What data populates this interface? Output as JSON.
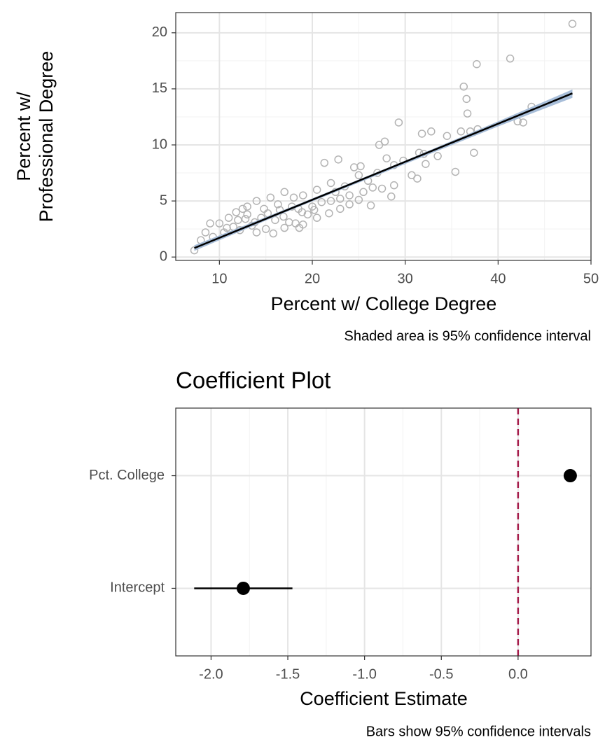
{
  "chart_data": [
    {
      "type": "scatter",
      "xlabel": "Percent w/ College Degree",
      "ylabel": [
        "Percent w/",
        "Professional Degree"
      ],
      "caption": "Shaded area is 95% confidence interval",
      "x": [
        48,
        41.3,
        37.7,
        36.3,
        36.6,
        36.7,
        43.6,
        42.1,
        42.7,
        37.8,
        37.0,
        36,
        32.8,
        31.8,
        34.5,
        29.3,
        27.8,
        27.2,
        37.4,
        33.5,
        31.5,
        32,
        35.4,
        32.2,
        29.8,
        28.8,
        28,
        27,
        30.7,
        31.3,
        28.8,
        28.5,
        26.3,
        24.5,
        25.2,
        22.8,
        21.3,
        25,
        26,
        27.5,
        23.5,
        22,
        20.5,
        24,
        25.5,
        19,
        18,
        17,
        15.5,
        14,
        13,
        12.5,
        11,
        10,
        9,
        8.5,
        8,
        7.3,
        9.3,
        10.5,
        11.5,
        12,
        13.5,
        14.5,
        15,
        16,
        16.5,
        17.5,
        18.5,
        19.5,
        20,
        21,
        22,
        23,
        19,
        17,
        14,
        12.2,
        15.8,
        18.2,
        20.5,
        21.8,
        23,
        24,
        13,
        14.8,
        16.3,
        17.8,
        18.9,
        20.2,
        11.8,
        10.8,
        25,
        26.5,
        22.5,
        18.6,
        16.9,
        15.2,
        13.8,
        12.8
      ],
      "y": [
        20.8,
        17.7,
        17.2,
        15.2,
        14.1,
        12.8,
        13.4,
        12.1,
        12.0,
        11.4,
        11.2,
        11.2,
        11.2,
        11,
        10.8,
        12,
        10.3,
        10,
        9.3,
        9,
        9.3,
        9.2,
        7.6,
        8.3,
        8.6,
        8.2,
        8.8,
        7.5,
        7.3,
        7.0,
        6.4,
        5.4,
        4.6,
        8.0,
        8.1,
        8.7,
        8.4,
        7.3,
        6.8,
        6.1,
        6.3,
        6.6,
        6.0,
        5.5,
        5.8,
        5.5,
        5.3,
        5.8,
        5.3,
        5,
        4.5,
        4.3,
        3.5,
        3,
        3,
        2.2,
        1.5,
        0.6,
        1.8,
        2.2,
        2.7,
        3.3,
        2.8,
        3.5,
        2.5,
        3.3,
        4.2,
        3.1,
        4.3,
        3.8,
        4.5,
        4.9,
        5,
        5.2,
        2.9,
        2.6,
        2.2,
        2.4,
        2.1,
        3.0,
        3.5,
        3.9,
        4.3,
        4.7,
        3.8,
        4.3,
        4.7,
        4.5,
        4.0,
        4.2,
        4.0,
        2.6,
        5.1,
        6.2,
        5.8,
        2.6,
        3.6,
        3.9,
        3.1,
        3.4
      ],
      "point_color": "#b3b3b3",
      "fit": {
        "x": [
          7.3,
          48
        ],
        "y": [
          0.8,
          14.6
        ],
        "color": "#000000"
      },
      "ci": {
        "x": [
          7.3,
          18,
          30,
          40,
          48
        ],
        "lower": [
          0.55,
          4.3,
          8.3,
          11.65,
          14.2
        ],
        "upper": [
          1.05,
          4.55,
          8.6,
          12.1,
          14.95
        ],
        "color": "#a8bed9"
      },
      "xlim": [
        5.3,
        50
      ],
      "ylim": [
        -0.3,
        21.8
      ],
      "xticks": [
        10,
        20,
        30,
        40,
        50
      ],
      "yticks": [
        0,
        5,
        10,
        15,
        20
      ],
      "grid": true
    },
    {
      "type": "coefficient",
      "title": "Coefficient Plot",
      "xlabel": "Coefficient Estimate",
      "caption": "Bars show 95% confidence intervals",
      "categories": [
        "Pct. College",
        "Intercept"
      ],
      "values": [
        0.34,
        -1.79
      ],
      "lower": [
        0.32,
        -2.11
      ],
      "upper": [
        0.36,
        -1.47
      ],
      "color": "#000000",
      "ref_line": {
        "value": 0,
        "color": "#a51c4b"
      },
      "xlim": [
        -2.23,
        0.475
      ],
      "xticks": [
        {
          "value": -2,
          "label": "-2.0"
        },
        -1.5,
        {
          "value": -1,
          "label": "-1.0"
        },
        -0.5,
        {
          "value": 0,
          "label": "0.0"
        }
      ],
      "grid": true
    }
  ]
}
